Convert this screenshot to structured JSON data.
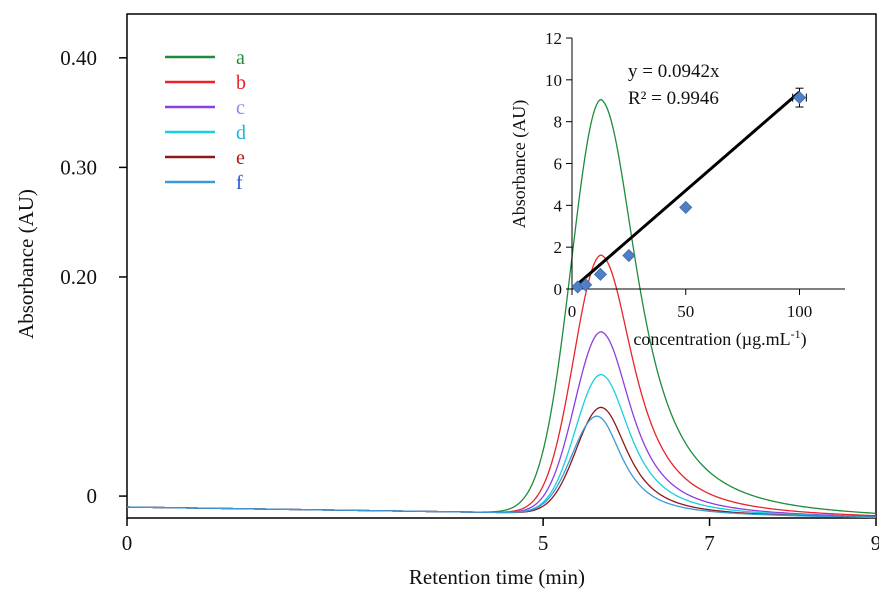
{
  "chart_data": [
    {
      "type": "line",
      "xlabel": "Retention time (min)",
      "ylabel": "Absorbance (AU)",
      "xlim": [
        0,
        9
      ],
      "ylim": [
        -0.02,
        0.44
      ],
      "x_ticks": [
        {
          "value": 0,
          "label": "0"
        },
        {
          "value": 5,
          "label": "5"
        },
        {
          "value": 7,
          "label": "7"
        },
        {
          "value": 9,
          "label": "9"
        }
      ],
      "y_ticks": [
        {
          "value": 0.0,
          "label": "0"
        },
        {
          "value": 0.2,
          "label": "0.20"
        },
        {
          "value": 0.3,
          "label": "0.30"
        },
        {
          "value": 0.4,
          "label": "0.40"
        }
      ],
      "grid": false,
      "legend_position": "top-left",
      "baseline_start": -0.01,
      "baseline_end": -0.02,
      "series": [
        {
          "name": "a",
          "color": "#1e8c3a",
          "peak_x": 5.7,
          "peak_y": 0.362,
          "sigma_left": 0.36,
          "tail": 0.92
        },
        {
          "name": "b",
          "color": "#e8242a",
          "peak_x": 5.7,
          "peak_y": 0.22,
          "sigma_left": 0.33,
          "tail": 0.82
        },
        {
          "name": "c",
          "color": "#8a3fe0",
          "peak_x": 5.7,
          "peak_y": 0.15,
          "sigma_left": 0.32,
          "tail": 0.75
        },
        {
          "name": "d",
          "color": "#18cfe0",
          "peak_x": 5.7,
          "peak_y": 0.111,
          "sigma_left": 0.31,
          "tail": 0.72
        },
        {
          "name": "e",
          "color": "#8b1a1a",
          "peak_x": 5.7,
          "peak_y": 0.081,
          "sigma_left": 0.3,
          "tail": 0.66
        },
        {
          "name": "f",
          "color": "#3a9ad8",
          "peak_x": 5.65,
          "peak_y": 0.073,
          "sigma_left": 0.3,
          "tail": 0.62
        }
      ],
      "legend_label_colors": [
        "#1e8c3a",
        "#e8242a",
        "#8a8ae8",
        "#18b8d8",
        "#b01818",
        "#2b4fd8"
      ]
    },
    {
      "type": "scatter",
      "xlabel": "concentration (µg.mL",
      "xlabel_superscript": "-1",
      "xlabel_suffix": ")",
      "ylabel": "Absorbance (AU)",
      "xlim": [
        0,
        120
      ],
      "ylim": [
        0,
        12
      ],
      "x_ticks": [
        0,
        50,
        100
      ],
      "y_ticks": [
        0,
        2,
        4,
        6,
        8,
        10,
        12
      ],
      "points": [
        {
          "x": 2.5,
          "y": 0.1
        },
        {
          "x": 6,
          "y": 0.2
        },
        {
          "x": 12.5,
          "y": 0.7
        },
        {
          "x": 25,
          "y": 1.6
        },
        {
          "x": 50,
          "y": 3.9
        },
        {
          "x": 100,
          "y": 9.15,
          "xerr": 3,
          "yerr": 0.45
        }
      ],
      "marker_color": "#4f7fc4",
      "fit": {
        "slope": 0.0942,
        "x_start": 2,
        "x_end": 100
      },
      "equation": "y = 0.0942x",
      "r2": "R² = 0.9946"
    }
  ]
}
